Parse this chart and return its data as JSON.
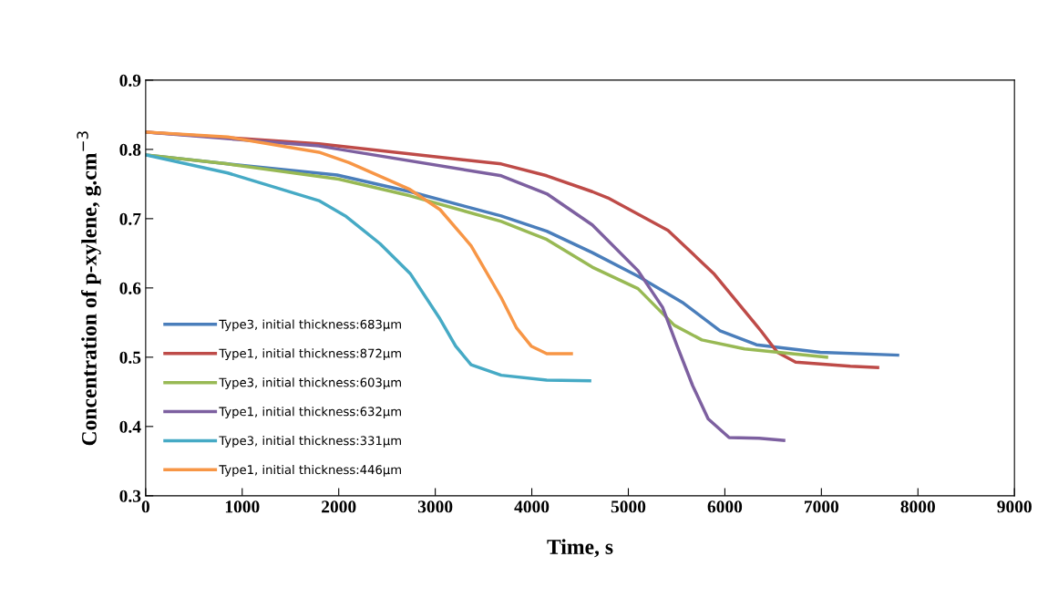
{
  "chart_data": {
    "type": "line",
    "xlabel": "Time, s",
    "ylabel": "Concentration of p-xylene, g.cm$^{−3}$",
    "xlim": [
      0,
      9000
    ],
    "xticks": [
      0,
      1000,
      2000,
      3000,
      4000,
      5000,
      6000,
      7000,
      8000,
      9000
    ],
    "ylim": [
      0.3,
      0.9
    ],
    "yticks": [
      0.3,
      0.4,
      0.5,
      0.6,
      0.7,
      0.8,
      0.9
    ],
    "grid": false,
    "legend": "bottom left",
    "marker": "none",
    "line_style": "solid",
    "series": [
      {
        "name": "Type3, initial thickness:683μm",
        "color": "#4a7ebb",
        "x": [
          0,
          850,
          1983,
          2739,
          3683,
          4155,
          4627,
          5100,
          5572,
          5950,
          6327,
          6988,
          7790
        ],
        "values": [
          0.792,
          0.779,
          0.763,
          0.739,
          0.704,
          0.682,
          0.651,
          0.617,
          0.578,
          0.538,
          0.518,
          0.507,
          0.503
        ]
      },
      {
        "name": "Type1, initial thickness:872μm",
        "color": "#be4b48",
        "x": [
          0,
          1794,
          3683,
          4155,
          4627,
          4788,
          5411,
          5883,
          6327,
          6374,
          6544,
          6733,
          7300,
          7583
        ],
        "values": [
          0.825,
          0.808,
          0.779,
          0.762,
          0.739,
          0.73,
          0.683,
          0.621,
          0.546,
          0.538,
          0.507,
          0.493,
          0.487,
          0.485
        ]
      },
      {
        "name": "Type3, initial thickness:603μm",
        "color": "#98b954",
        "x": [
          0,
          850,
          2000,
          2739,
          3683,
          4155,
          4627,
          5100,
          5477,
          5761,
          6204,
          7054
        ],
        "values": [
          0.792,
          0.779,
          0.757,
          0.733,
          0.696,
          0.67,
          0.63,
          0.599,
          0.546,
          0.525,
          0.512,
          0.5
        ]
      },
      {
        "name": "Type1, initial thickness:632μm",
        "color": "#7d60a0",
        "x": [
          0,
          1794,
          3683,
          4155,
          4627,
          5100,
          5355,
          5506,
          5666,
          5827,
          6044,
          6355,
          6610
        ],
        "values": [
          0.825,
          0.805,
          0.762,
          0.736,
          0.691,
          0.625,
          0.572,
          0.516,
          0.459,
          0.411,
          0.384,
          0.383,
          0.38
        ]
      },
      {
        "name": "Type3, initial thickness:331μm",
        "color": "#46aac5",
        "x": [
          0,
          850,
          1794,
          2078,
          2427,
          2739,
          3050,
          3211,
          3371,
          3683,
          4155,
          4600
        ],
        "values": [
          0.792,
          0.766,
          0.726,
          0.703,
          0.664,
          0.621,
          0.555,
          0.516,
          0.489,
          0.474,
          0.467,
          0.466
        ]
      },
      {
        "name": "Type1, initial thickness:446μm",
        "color": "#f79646",
        "x": [
          0,
          850,
          1794,
          2106,
          2739,
          3050,
          3371,
          3683,
          3843,
          3994,
          4155,
          4410
        ],
        "values": [
          0.825,
          0.818,
          0.796,
          0.781,
          0.742,
          0.713,
          0.661,
          0.586,
          0.542,
          0.516,
          0.505,
          0.505
        ]
      }
    ]
  }
}
